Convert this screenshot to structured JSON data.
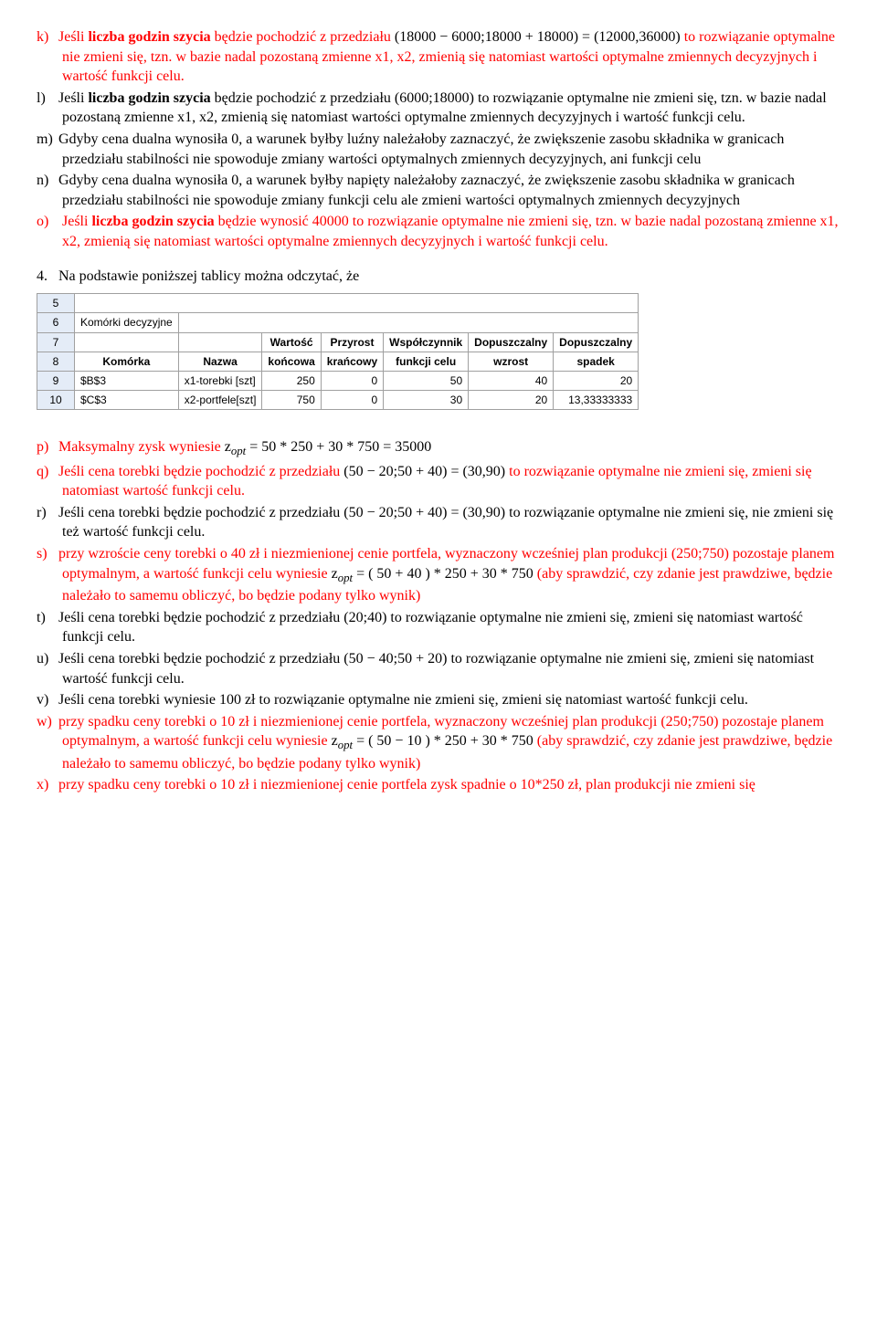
{
  "items_top": {
    "k": {
      "marker": "k)",
      "text_parts": [
        {
          "t": "Jeśli ",
          "cls": "red"
        },
        {
          "t": "liczba godzin szycia",
          "cls": "red bold"
        },
        {
          "t": " będzie pochodzić z przedziału ",
          "cls": "red"
        },
        {
          "t": "(18000 − 6000;18000 + 18000) = (12000,36000)",
          "cls": "black"
        },
        {
          "t": " to rozwiązanie optymalne nie zmieni się, tzn. w bazie nadal pozostaną zmienne x1, x2, zmienią się natomiast wartości optymalne zmiennych decyzyjnych i wartość funkcji celu.",
          "cls": "red"
        }
      ]
    },
    "l": {
      "marker": "l)",
      "text_parts": [
        {
          "t": "Jeśli ",
          "cls": "black"
        },
        {
          "t": "liczba godzin szycia",
          "cls": "black bold"
        },
        {
          "t": " będzie pochodzić z przedziału ",
          "cls": "black"
        },
        {
          "t": "(6000;18000)",
          "cls": "black"
        },
        {
          "t": " to rozwiązanie optymalne nie zmieni się, tzn. w bazie nadal pozostaną zmienne x1, x2, zmienią się natomiast wartości optymalne zmiennych decyzyjnych i wartość funkcji celu.",
          "cls": "black"
        }
      ]
    },
    "m": {
      "marker": "m)",
      "text_parts": [
        {
          "t": "Gdyby cena dualna wynosiła 0, a warunek byłby luźny należałoby zaznaczyć, że zwiększenie zasobu składnika w granicach przedziału stabilności nie spowoduje zmiany wartości optymalnych zmiennych decyzyjnych, ani funkcji celu",
          "cls": "black"
        }
      ]
    },
    "n": {
      "marker": "n)",
      "text_parts": [
        {
          "t": "Gdyby cena dualna wynosiła 0, a warunek byłby napięty należałoby zaznaczyć, że zwiększenie zasobu składnika w granicach przedziału stabilności nie spowoduje zmiany funkcji celu  ale zmieni wartości optymalnych zmiennych decyzyjnych",
          "cls": "black"
        }
      ]
    },
    "o": {
      "marker": "o)",
      "text_parts": [
        {
          "t": " Jeśli ",
          "cls": "red"
        },
        {
          "t": "liczba godzin szycia",
          "cls": "red bold"
        },
        {
          "t": " będzie wynosić 40000 to rozwiązanie optymalne nie zmieni się, tzn. w bazie nadal pozostaną zmienne x1, x2, zmienią się natomiast wartości optymalne zmiennych decyzyjnych i wartość funkcji celu.",
          "cls": "red"
        }
      ]
    }
  },
  "num4": "Na podstawie poniższej tablicy można odczytać, że",
  "num4_marker": "4.",
  "table": {
    "header_row5": "5",
    "header_row6": "6",
    "header_row7": "7",
    "header_row8": "8",
    "header_row9": "9",
    "header_row10": "10",
    "komorki": "Komórki decyzyjne",
    "cols": [
      "Komórka",
      "Nazwa",
      "Wartość końcowa",
      "Przyrost krańcowy",
      "Współczynnik funkcji celu",
      "Dopuszczalny wzrost",
      "Dopuszczalny spadek"
    ],
    "cols_top": [
      "",
      "",
      "Wartość",
      "Przyrost",
      "Współczynnik",
      "Dopuszczalny",
      "Dopuszczalny"
    ],
    "cols_bot": [
      "Komórka",
      "Nazwa",
      "końcowa",
      "krańcowy",
      "funkcji celu",
      "wzrost",
      "spadek"
    ],
    "rows": [
      {
        "cell": "$B$3",
        "name": "x1-torebki [szt]",
        "val": "250",
        "prz": "0",
        "wsp": "50",
        "wzrost": "40",
        "spadek": "20"
      },
      {
        "cell": "$C$3",
        "name": "x2-portfele[szt]",
        "val": "750",
        "prz": "0",
        "wsp": "30",
        "wzrost": "20",
        "spadek": "13,33333333"
      }
    ]
  },
  "items_bottom": {
    "p": {
      "marker": "p)",
      "text_parts": [
        {
          "t": "Maksymalny zysk wyniesie ",
          "cls": "red"
        },
        {
          "t": "z",
          "cls": "black"
        },
        {
          "t": "opt",
          "cls": "black sub"
        },
        {
          "t": " = 50 * 250 + 30 * 750 = 35000",
          "cls": "black"
        }
      ]
    },
    "q": {
      "marker": "q)",
      "text_parts": [
        {
          "t": "Jeśli cena torebki będzie pochodzić z przedziału ",
          "cls": "red"
        },
        {
          "t": "(50 − 20;50 + 40) = (30,90)",
          "cls": "black"
        },
        {
          "t": " to rozwiązanie optymalne nie zmieni się, zmieni się natomiast wartość funkcji celu.",
          "cls": "red"
        }
      ]
    },
    "r": {
      "marker": "r)",
      "text_parts": [
        {
          "t": "Jeśli cena torebki będzie pochodzić z przedziału ",
          "cls": "black"
        },
        {
          "t": "(50 − 20;50 + 40) = (30,90)",
          "cls": "black"
        },
        {
          "t": " to rozwiązanie optymalne nie zmieni się, nie zmieni się też wartość funkcji celu.",
          "cls": "black"
        }
      ]
    },
    "s": {
      "marker": "s)",
      "text_parts": [
        {
          "t": "przy wzroście ceny torebki o 40 zł i niezmienionej cenie portfela, wyznaczony wcześniej plan produkcji (250;750) pozostaje planem optymalnym, a wartość funkcji celu wyniesie ",
          "cls": "red"
        },
        {
          "t": "z",
          "cls": "black"
        },
        {
          "t": "opt",
          "cls": "black sub"
        },
        {
          "t": " = ( 50 + 40 ) * 250 + 30 * 750",
          "cls": "black"
        },
        {
          "t": " (aby sprawdzić, czy zdanie jest prawdziwe, będzie należało to samemu obliczyć, bo będzie podany tylko wynik)",
          "cls": "red"
        }
      ]
    },
    "t": {
      "marker": "t)",
      "text_parts": [
        {
          "t": "Jeśli cena torebki będzie pochodzić z przedziału ",
          "cls": "black"
        },
        {
          "t": "(20;40)",
          "cls": "black"
        },
        {
          "t": " to rozwiązanie optymalne nie zmieni się, zmieni się natomiast wartość funkcji celu.",
          "cls": "black"
        }
      ]
    },
    "u": {
      "marker": "u)",
      "text_parts": [
        {
          "t": "Jeśli cena torebki będzie pochodzić z przedziału ",
          "cls": "black"
        },
        {
          "t": "(50 − 40;50 + 20)",
          "cls": "black"
        },
        {
          "t": " to rozwiązanie optymalne nie zmieni się, zmieni się natomiast wartość funkcji celu.",
          "cls": "black"
        }
      ]
    },
    "v": {
      "marker": "v)",
      "text_parts": [
        {
          "t": "Jeśli cena torebki wyniesie 100 zł  to rozwiązanie optymalne nie zmieni się, zmieni się natomiast wartość funkcji celu.",
          "cls": "black"
        }
      ]
    },
    "w": {
      "marker": "w)",
      "text_parts": [
        {
          "t": "przy spadku ceny torebki o 10 zł i niezmienionej cenie portfela, wyznaczony wcześniej plan produkcji (250;750) pozostaje planem optymalnym, a wartość funkcji celu wyniesie ",
          "cls": "red"
        },
        {
          "t": "z",
          "cls": "black"
        },
        {
          "t": "opt",
          "cls": "black sub"
        },
        {
          "t": " = ( 50 − 10 ) * 250 + 30 * 750",
          "cls": "black"
        },
        {
          "t": " (aby sprawdzić, czy zdanie jest prawdziwe, będzie należało to samemu obliczyć, bo będzie podany tylko wynik)",
          "cls": "red"
        }
      ]
    },
    "x": {
      "marker": "x)",
      "text_parts": [
        {
          "t": "przy spadku ceny torebki o 10 zł i niezmienionej cenie portfela zysk spadnie o 10*250 zł, plan produkcji nie zmieni się",
          "cls": "red"
        }
      ]
    }
  }
}
